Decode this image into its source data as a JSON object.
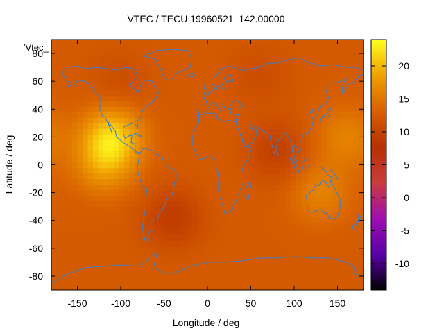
{
  "chart_data": {
    "type": "heatmap",
    "title": "VTEC / TECU 19960521_142.00000",
    "xlabel": "Longitude / deg",
    "ylabel": "Latitude / deg",
    "legend_label": "'Vtec_",
    "xlim": [
      -180,
      180
    ],
    "ylim": [
      -90,
      90
    ],
    "x_ticks": [
      -150,
      -100,
      -50,
      0,
      50,
      100,
      150
    ],
    "y_ticks": [
      -80,
      -60,
      -40,
      -20,
      0,
      20,
      40,
      60,
      80
    ],
    "colorbar": {
      "range": [
        -14,
        24
      ],
      "ticks": [
        -10,
        -5,
        0,
        5,
        10,
        15,
        20
      ],
      "palette": [
        "#000000",
        "#5a00a8",
        "#a00eb0",
        "#c83c3c",
        "#b83000",
        "#d86000",
        "#f0a000",
        "#ffff20"
      ]
    },
    "background_value": 12.5,
    "features": [
      {
        "label": "equatorial anomaly crest, Central America",
        "lon": -110,
        "lat": 20,
        "value": 21
      },
      {
        "label": "equatorial high, eastern Pacific",
        "lon": -120,
        "lat": 0,
        "value": 17
      },
      {
        "label": "equatorial high, western Pacific",
        "lon": 160,
        "lat": 20,
        "value": 16
      },
      {
        "label": "equatorial high, Australia",
        "lon": 130,
        "lat": -20,
        "value": 16
      },
      {
        "label": "low, South Atlantic",
        "lon": -40,
        "lat": -38,
        "value": 9
      },
      {
        "label": "low, India",
        "lon": 80,
        "lat": 10,
        "value": 9.5
      },
      {
        "label": "low, northern Canada",
        "lon": -100,
        "lat": 60,
        "value": 11
      },
      {
        "label": "low, Siberia",
        "lon": 60,
        "lat": 65,
        "value": 11
      }
    ],
    "grid": false,
    "overlay": "coastlines",
    "coastline_color": "#3a7fd0"
  }
}
